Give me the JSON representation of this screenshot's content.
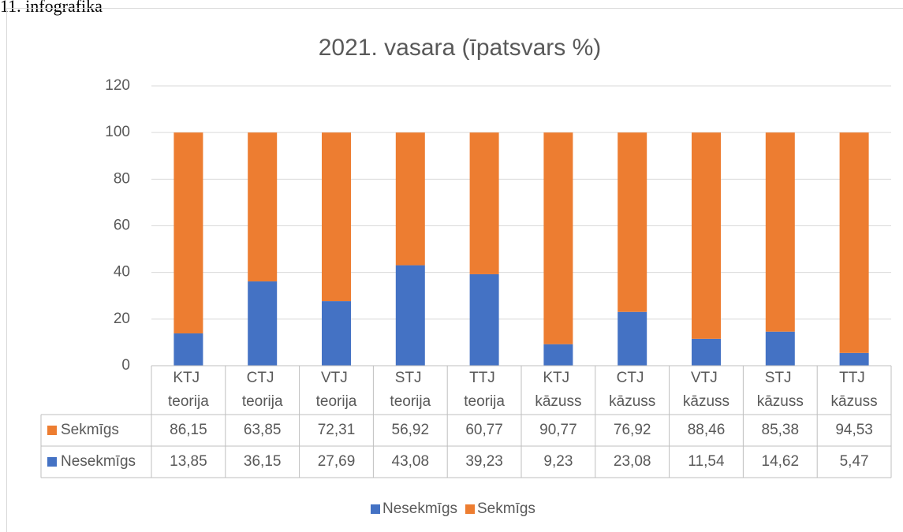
{
  "caption": "11. infografika",
  "chart_data": {
    "type": "stacked_bar",
    "title": "2021. vasara (īpatsvars %)",
    "categories": [
      "KTJ teorija",
      "CTJ teorija",
      "VTJ teorija",
      "STJ teorija",
      "TTJ teorija",
      "KTJ kāzuss",
      "CTJ kāzuss",
      "VTJ kāzuss",
      "STJ kāzuss",
      "TTJ kāzuss"
    ],
    "series": [
      {
        "name": "Nesekmīgs",
        "color": "#4472c4",
        "values": [
          13.85,
          36.15,
          27.69,
          43.08,
          39.23,
          9.23,
          23.08,
          11.54,
          14.62,
          5.47
        ],
        "value_labels": [
          "13,85",
          "36,15",
          "27,69",
          "43,08",
          "39,23",
          "9,23",
          "23,08",
          "11,54",
          "14,62",
          "5,47"
        ]
      },
      {
        "name": "Sekmīgs",
        "color": "#ed7d31",
        "values": [
          86.15,
          63.85,
          72.31,
          56.92,
          60.77,
          90.77,
          76.92,
          88.46,
          85.38,
          94.53
        ],
        "value_labels": [
          "86,15",
          "63,85",
          "72,31",
          "56,92",
          "60,77",
          "90,77",
          "76,92",
          "88,46",
          "85,38",
          "94,53"
        ]
      }
    ],
    "ylim": [
      0,
      120
    ],
    "yticks": [
      0,
      20,
      40,
      60,
      80,
      100,
      120
    ],
    "grid": true,
    "legend": "bottom",
    "data_table": true
  }
}
